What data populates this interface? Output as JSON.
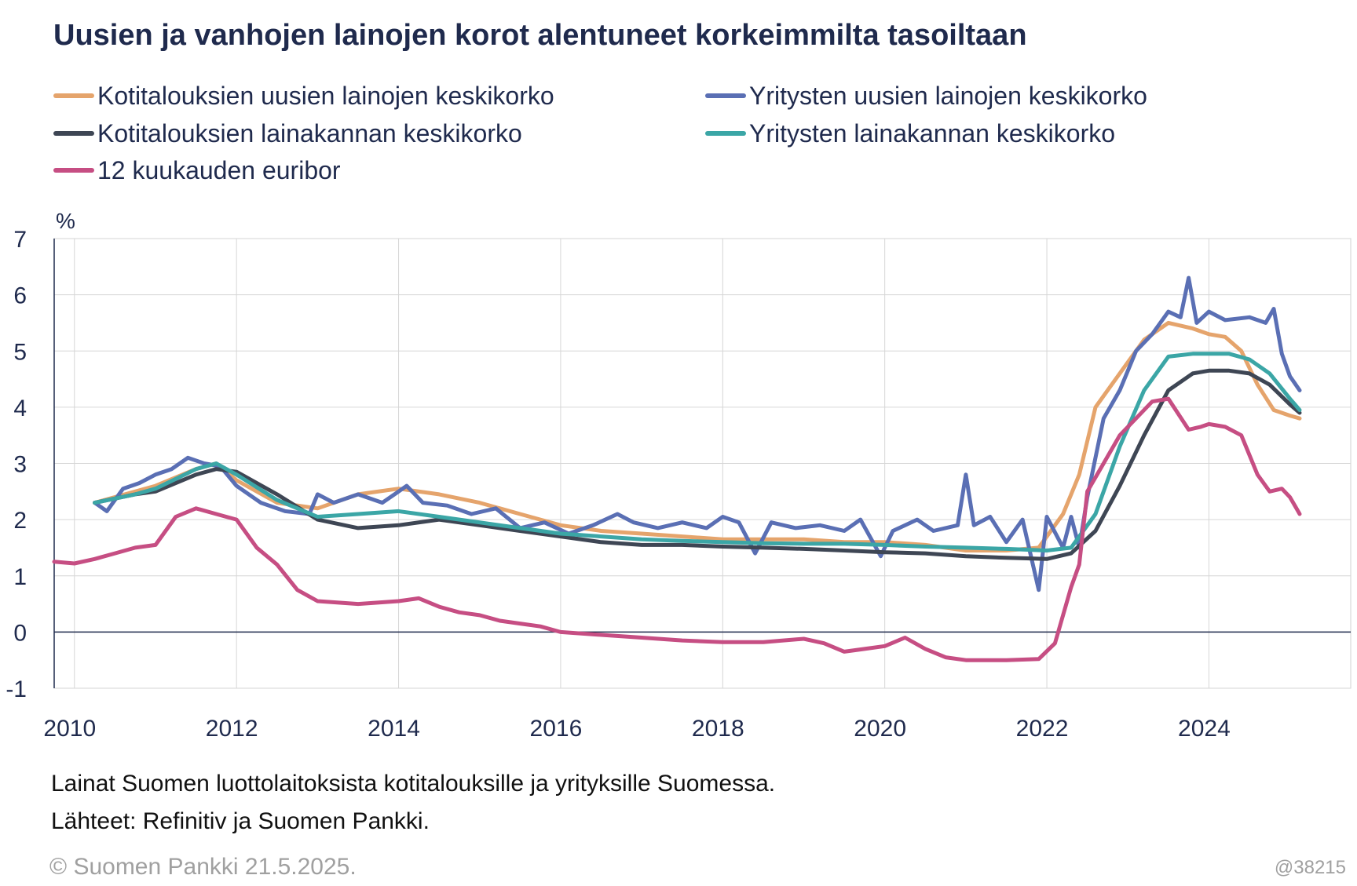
{
  "colors": {
    "households_new": "#e5a46c",
    "firms_new": "#5a6fb4",
    "households_stock": "#3e4654",
    "firms_stock": "#3ba6a6",
    "euribor": "#c64e83"
  },
  "footer": {
    "note1": "Lainat Suomen luottolaitoksista kotitalouksille ja yrityksille Suomessa.",
    "note2": "Lähteet: Refinitiv ja Suomen Pankki.",
    "copyright": "© Suomen Pankki 21.5.2025.",
    "code": "@38215"
  },
  "chart_data": {
    "type": "line",
    "title": "Uusien ja vanhojen lainojen korot alentuneet korkeimmilta tasoiltaan",
    "ylabel": "%",
    "xlim": [
      2009.75,
      2025.75
    ],
    "ylim": [
      -1,
      7
    ],
    "yticks": [
      7,
      6,
      5,
      4,
      3,
      2,
      1,
      0,
      -1
    ],
    "xticks": [
      2010,
      2012,
      2014,
      2016,
      2018,
      2020,
      2022,
      2024
    ],
    "grid": true,
    "legend_position": "top",
    "series": [
      {
        "key": "households_new",
        "name": "Kotitalouksien uusien lainojen keskikorko",
        "x": [
          2010.25,
          2010.75,
          2011.0,
          2011.5,
          2011.75,
          2012.0,
          2012.5,
          2013.0,
          2013.5,
          2014.0,
          2014.5,
          2015.0,
          2015.5,
          2016.0,
          2016.5,
          2017.0,
          2017.5,
          2018.0,
          2018.5,
          2019.0,
          2019.5,
          2020.0,
          2020.5,
          2021.0,
          2021.5,
          2021.9,
          2022.2,
          2022.4,
          2022.6,
          2022.8,
          2023.0,
          2023.2,
          2023.5,
          2023.8,
          2024.0,
          2024.2,
          2024.4,
          2024.6,
          2024.8,
          2025.0,
          2025.12
        ],
        "values": [
          2.3,
          2.5,
          2.6,
          2.9,
          3.0,
          2.7,
          2.3,
          2.2,
          2.45,
          2.55,
          2.45,
          2.3,
          2.1,
          1.9,
          1.8,
          1.75,
          1.7,
          1.65,
          1.65,
          1.65,
          1.6,
          1.6,
          1.55,
          1.45,
          1.45,
          1.5,
          2.1,
          2.8,
          4.0,
          4.4,
          4.8,
          5.2,
          5.5,
          5.4,
          5.3,
          5.25,
          5.0,
          4.4,
          3.95,
          3.85,
          3.8
        ]
      },
      {
        "key": "firms_new",
        "name": "Yritysten uusien lainojen keskikorko",
        "x": [
          2010.25,
          2010.4,
          2010.6,
          2010.8,
          2011.0,
          2011.2,
          2011.4,
          2011.6,
          2011.8,
          2012.0,
          2012.3,
          2012.6,
          2012.9,
          2013.0,
          2013.2,
          2013.5,
          2013.8,
          2014.1,
          2014.3,
          2014.6,
          2014.9,
          2015.2,
          2015.5,
          2015.8,
          2016.1,
          2016.4,
          2016.7,
          2016.9,
          2017.2,
          2017.5,
          2017.8,
          2018.0,
          2018.2,
          2018.4,
          2018.6,
          2018.9,
          2019.2,
          2019.5,
          2019.7,
          2019.95,
          2020.1,
          2020.4,
          2020.6,
          2020.9,
          2021.0,
          2021.1,
          2021.3,
          2021.5,
          2021.7,
          2021.9,
          2022.0,
          2022.2,
          2022.3,
          2022.4,
          2022.5,
          2022.7,
          2022.9,
          2023.1,
          2023.3,
          2023.5,
          2023.65,
          2023.75,
          2023.85,
          2024.0,
          2024.2,
          2024.5,
          2024.7,
          2024.8,
          2024.9,
          2025.0,
          2025.12
        ],
        "values": [
          2.3,
          2.15,
          2.55,
          2.65,
          2.8,
          2.9,
          3.1,
          3.0,
          2.95,
          2.6,
          2.3,
          2.15,
          2.1,
          2.45,
          2.3,
          2.45,
          2.3,
          2.6,
          2.3,
          2.25,
          2.1,
          2.2,
          1.85,
          1.95,
          1.75,
          1.9,
          2.1,
          1.95,
          1.85,
          1.95,
          1.85,
          2.05,
          1.95,
          1.4,
          1.95,
          1.85,
          1.9,
          1.8,
          2.0,
          1.35,
          1.8,
          2.0,
          1.8,
          1.9,
          2.8,
          1.9,
          2.05,
          1.6,
          2.0,
          0.75,
          2.05,
          1.5,
          2.05,
          1.5,
          2.4,
          3.8,
          4.3,
          5.0,
          5.3,
          5.7,
          5.6,
          6.3,
          5.5,
          5.7,
          5.55,
          5.6,
          5.5,
          5.75,
          4.95,
          4.55,
          4.3
        ]
      },
      {
        "key": "households_stock",
        "name": "Kotitalouksien lainakannan keskikorko",
        "x": [
          2010.25,
          2010.75,
          2011.0,
          2011.5,
          2011.75,
          2012.0,
          2012.5,
          2013.0,
          2013.5,
          2014.0,
          2014.5,
          2015.0,
          2015.5,
          2016.0,
          2016.5,
          2017.0,
          2017.5,
          2018.0,
          2018.5,
          2019.0,
          2019.5,
          2020.0,
          2020.5,
          2021.0,
          2021.5,
          2022.0,
          2022.3,
          2022.6,
          2022.9,
          2023.2,
          2023.5,
          2023.8,
          2024.0,
          2024.25,
          2024.5,
          2024.75,
          2025.0,
          2025.12
        ],
        "values": [
          2.3,
          2.45,
          2.5,
          2.8,
          2.9,
          2.85,
          2.45,
          2.0,
          1.85,
          1.9,
          2.0,
          1.9,
          1.8,
          1.7,
          1.6,
          1.55,
          1.55,
          1.52,
          1.5,
          1.48,
          1.45,
          1.42,
          1.4,
          1.35,
          1.32,
          1.3,
          1.4,
          1.8,
          2.6,
          3.5,
          4.3,
          4.6,
          4.65,
          4.65,
          4.6,
          4.4,
          4.05,
          3.9
        ]
      },
      {
        "key": "firms_stock",
        "name": "Yritysten lainakannan keskikorko",
        "x": [
          2010.25,
          2010.75,
          2011.0,
          2011.5,
          2011.75,
          2012.0,
          2012.5,
          2013.0,
          2013.5,
          2014.0,
          2014.5,
          2015.0,
          2015.5,
          2016.0,
          2016.5,
          2017.0,
          2017.5,
          2018.0,
          2018.5,
          2019.0,
          2019.5,
          2020.0,
          2020.5,
          2021.0,
          2021.5,
          2022.0,
          2022.3,
          2022.6,
          2022.9,
          2023.2,
          2023.5,
          2023.8,
          2024.0,
          2024.25,
          2024.5,
          2024.75,
          2025.0,
          2025.12
        ],
        "values": [
          2.3,
          2.45,
          2.55,
          2.9,
          3.0,
          2.8,
          2.35,
          2.05,
          2.1,
          2.15,
          2.05,
          1.95,
          1.85,
          1.75,
          1.7,
          1.65,
          1.62,
          1.6,
          1.58,
          1.57,
          1.57,
          1.55,
          1.52,
          1.5,
          1.48,
          1.45,
          1.5,
          2.1,
          3.3,
          4.3,
          4.9,
          4.95,
          4.95,
          4.95,
          4.85,
          4.6,
          4.15,
          3.95
        ]
      },
      {
        "key": "euribor",
        "name": "12 kuukauden euribor",
        "x": [
          2009.75,
          2010.0,
          2010.25,
          2010.5,
          2010.75,
          2011.0,
          2011.25,
          2011.5,
          2011.75,
          2012.0,
          2012.25,
          2012.5,
          2012.75,
          2013.0,
          2013.5,
          2014.0,
          2014.25,
          2014.5,
          2014.75,
          2015.0,
          2015.25,
          2015.5,
          2015.75,
          2016.0,
          2016.5,
          2017.0,
          2017.5,
          2018.0,
          2018.5,
          2019.0,
          2019.25,
          2019.5,
          2019.75,
          2020.0,
          2020.25,
          2020.5,
          2020.75,
          2021.0,
          2021.5,
          2021.9,
          2022.1,
          2022.3,
          2022.4,
          2022.5,
          2022.7,
          2022.9,
          2023.1,
          2023.3,
          2023.5,
          2023.75,
          2023.9,
          2024.0,
          2024.2,
          2024.4,
          2024.6,
          2024.75,
          2024.9,
          2025.0,
          2025.12
        ],
        "values": [
          1.25,
          1.22,
          1.3,
          1.4,
          1.5,
          1.55,
          2.05,
          2.2,
          2.1,
          2.0,
          1.5,
          1.2,
          0.75,
          0.55,
          0.5,
          0.55,
          0.6,
          0.45,
          0.35,
          0.3,
          0.2,
          0.15,
          0.1,
          0.0,
          -0.05,
          -0.1,
          -0.15,
          -0.18,
          -0.18,
          -0.12,
          -0.2,
          -0.35,
          -0.3,
          -0.25,
          -0.1,
          -0.3,
          -0.45,
          -0.5,
          -0.5,
          -0.48,
          -0.2,
          0.8,
          1.2,
          2.5,
          3.0,
          3.5,
          3.8,
          4.1,
          4.15,
          3.6,
          3.65,
          3.7,
          3.65,
          3.5,
          2.8,
          2.5,
          2.55,
          2.4,
          2.1
        ]
      }
    ]
  }
}
